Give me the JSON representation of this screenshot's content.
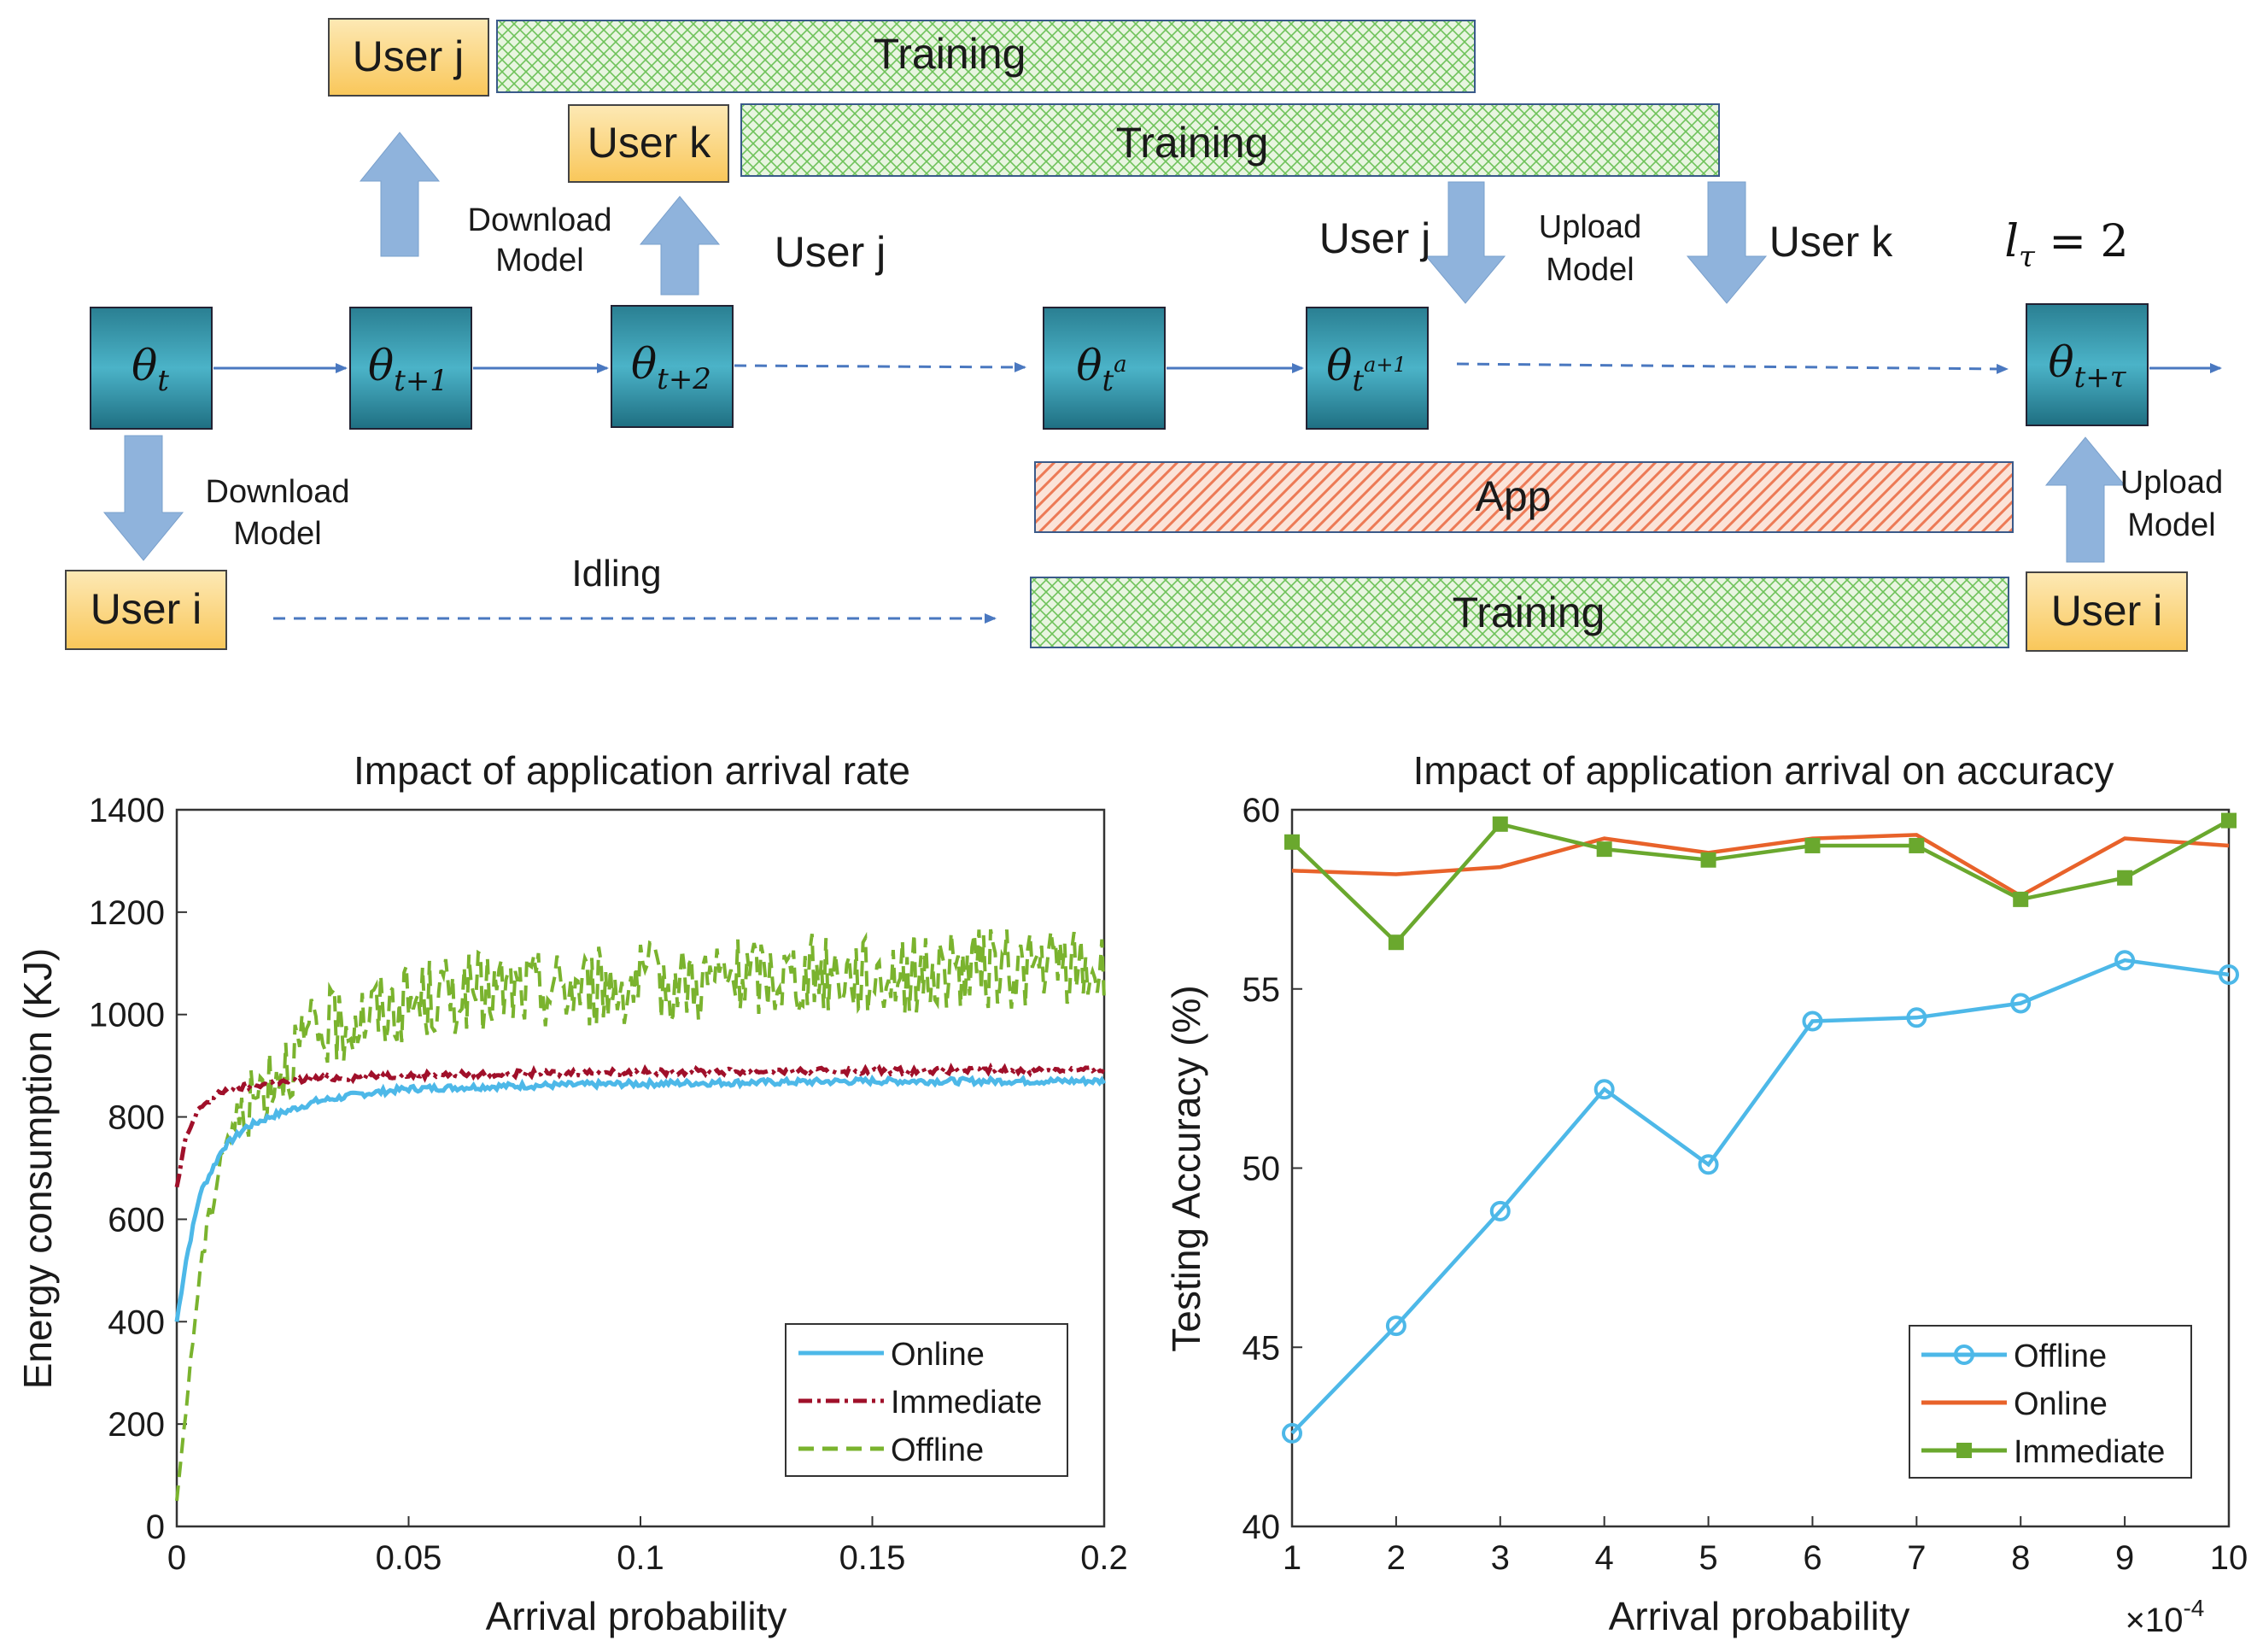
{
  "diagram": {
    "user_labels": {
      "user_j": "User j",
      "user_k": "User k",
      "user_i_left": "User i",
      "user_i_right": "User i"
    },
    "bars": {
      "training_j": "Training",
      "training_k": "Training",
      "app": "App",
      "training_i": "Training"
    },
    "annotations": {
      "download_model_top": "Download\nModel",
      "download_model_left": "Download\nModel",
      "upload_model_top": "Upload\nModel",
      "upload_model_right": "Upload\nModel",
      "idling": "Idling",
      "user_j_mid": "User j",
      "user_j_right": "User j",
      "user_k_right": "User k",
      "l_tau": "lτ = 2"
    },
    "model_boxes": [
      "θt",
      "θt+1",
      "θt+2",
      "θt^a",
      "θt^{a+1}",
      "θt+τ"
    ],
    "colors": {
      "user_box": "#fdd98b",
      "model_box": "#2b8a9c",
      "training_fill": "#8fd07a",
      "app_fill": "#f08c6a",
      "arrow_blue": "#8fb3dc",
      "line_blue": "#4a78c0"
    }
  },
  "chart_data": [
    {
      "type": "line",
      "title": "Impact of application arrival rate",
      "xlabel": "Arrival probability",
      "ylabel": "Energy consumption (KJ)",
      "xlim": [
        0,
        0.2
      ],
      "ylim": [
        0,
        1400
      ],
      "xticks": [
        0,
        0.05,
        0.1,
        0.15,
        0.2
      ],
      "xtick_labels": [
        "0",
        "0.05",
        "0.1",
        "0.15",
        "0.2"
      ],
      "yticks": [
        0,
        200,
        400,
        600,
        800,
        1000,
        1200,
        1400
      ],
      "legend_position": "bottom-right",
      "series": [
        {
          "name": "Online",
          "color": "#4db8e8",
          "style": "solid",
          "x": [
            0,
            0.002,
            0.005,
            0.01,
            0.015,
            0.02,
            0.03,
            0.04,
            0.05,
            0.07,
            0.1,
            0.15,
            0.2
          ],
          "y": [
            400,
            520,
            650,
            740,
            780,
            800,
            830,
            845,
            855,
            860,
            865,
            870,
            870
          ]
        },
        {
          "name": "Immediate",
          "color": "#a0102a",
          "style": "dashdot",
          "x": [
            0,
            0.002,
            0.005,
            0.01,
            0.015,
            0.02,
            0.03,
            0.05,
            0.1,
            0.15,
            0.2
          ],
          "y": [
            660,
            760,
            820,
            850,
            860,
            865,
            875,
            882,
            888,
            890,
            892
          ]
        },
        {
          "name": "Offline",
          "color": "#7ab32e",
          "style": "dashed",
          "x": [
            0,
            0.005,
            0.01,
            0.02,
            0.03,
            0.04,
            0.05,
            0.06,
            0.08,
            0.1,
            0.12,
            0.14,
            0.16,
            0.18,
            0.2
          ],
          "y": [
            50,
            500,
            750,
            880,
            960,
            1000,
            1020,
            1040,
            1050,
            1060,
            1070,
            1080,
            1080,
            1090,
            1090
          ]
        }
      ]
    },
    {
      "type": "line",
      "title": "Impact of application arrival on accuracy",
      "xlabel": "Arrival probability",
      "ylabel": "Testing Accuracy (%)",
      "x_multiplier": "×10-4",
      "xlim": [
        1,
        10
      ],
      "ylim": [
        40,
        60
      ],
      "xticks": [
        1,
        2,
        3,
        4,
        5,
        6,
        7,
        8,
        9,
        10
      ],
      "yticks": [
        40,
        45,
        50,
        55,
        60
      ],
      "legend_position": "bottom-right",
      "series": [
        {
          "name": "Offline",
          "color": "#4db8e8",
          "marker": "circle",
          "x": [
            1,
            2,
            3,
            4,
            5,
            6,
            7,
            8,
            9,
            10
          ],
          "y": [
            42.6,
            45.6,
            48.8,
            52.2,
            50.1,
            54.1,
            54.2,
            54.6,
            55.8,
            55.4
          ]
        },
        {
          "name": "Online",
          "color": "#e8622a",
          "marker": "none",
          "x": [
            1,
            2,
            3,
            4,
            5,
            6,
            7,
            8,
            9,
            10
          ],
          "y": [
            58.3,
            58.2,
            58.4,
            59.2,
            58.8,
            59.2,
            59.3,
            57.6,
            59.2,
            59.0
          ]
        },
        {
          "name": "Immediate",
          "color": "#6aa82e",
          "marker": "square",
          "x": [
            1,
            2,
            3,
            4,
            5,
            6,
            7,
            8,
            9,
            10
          ],
          "y": [
            59.1,
            56.3,
            59.6,
            58.9,
            58.6,
            59.0,
            59.0,
            57.5,
            58.1,
            59.7
          ]
        }
      ]
    }
  ]
}
